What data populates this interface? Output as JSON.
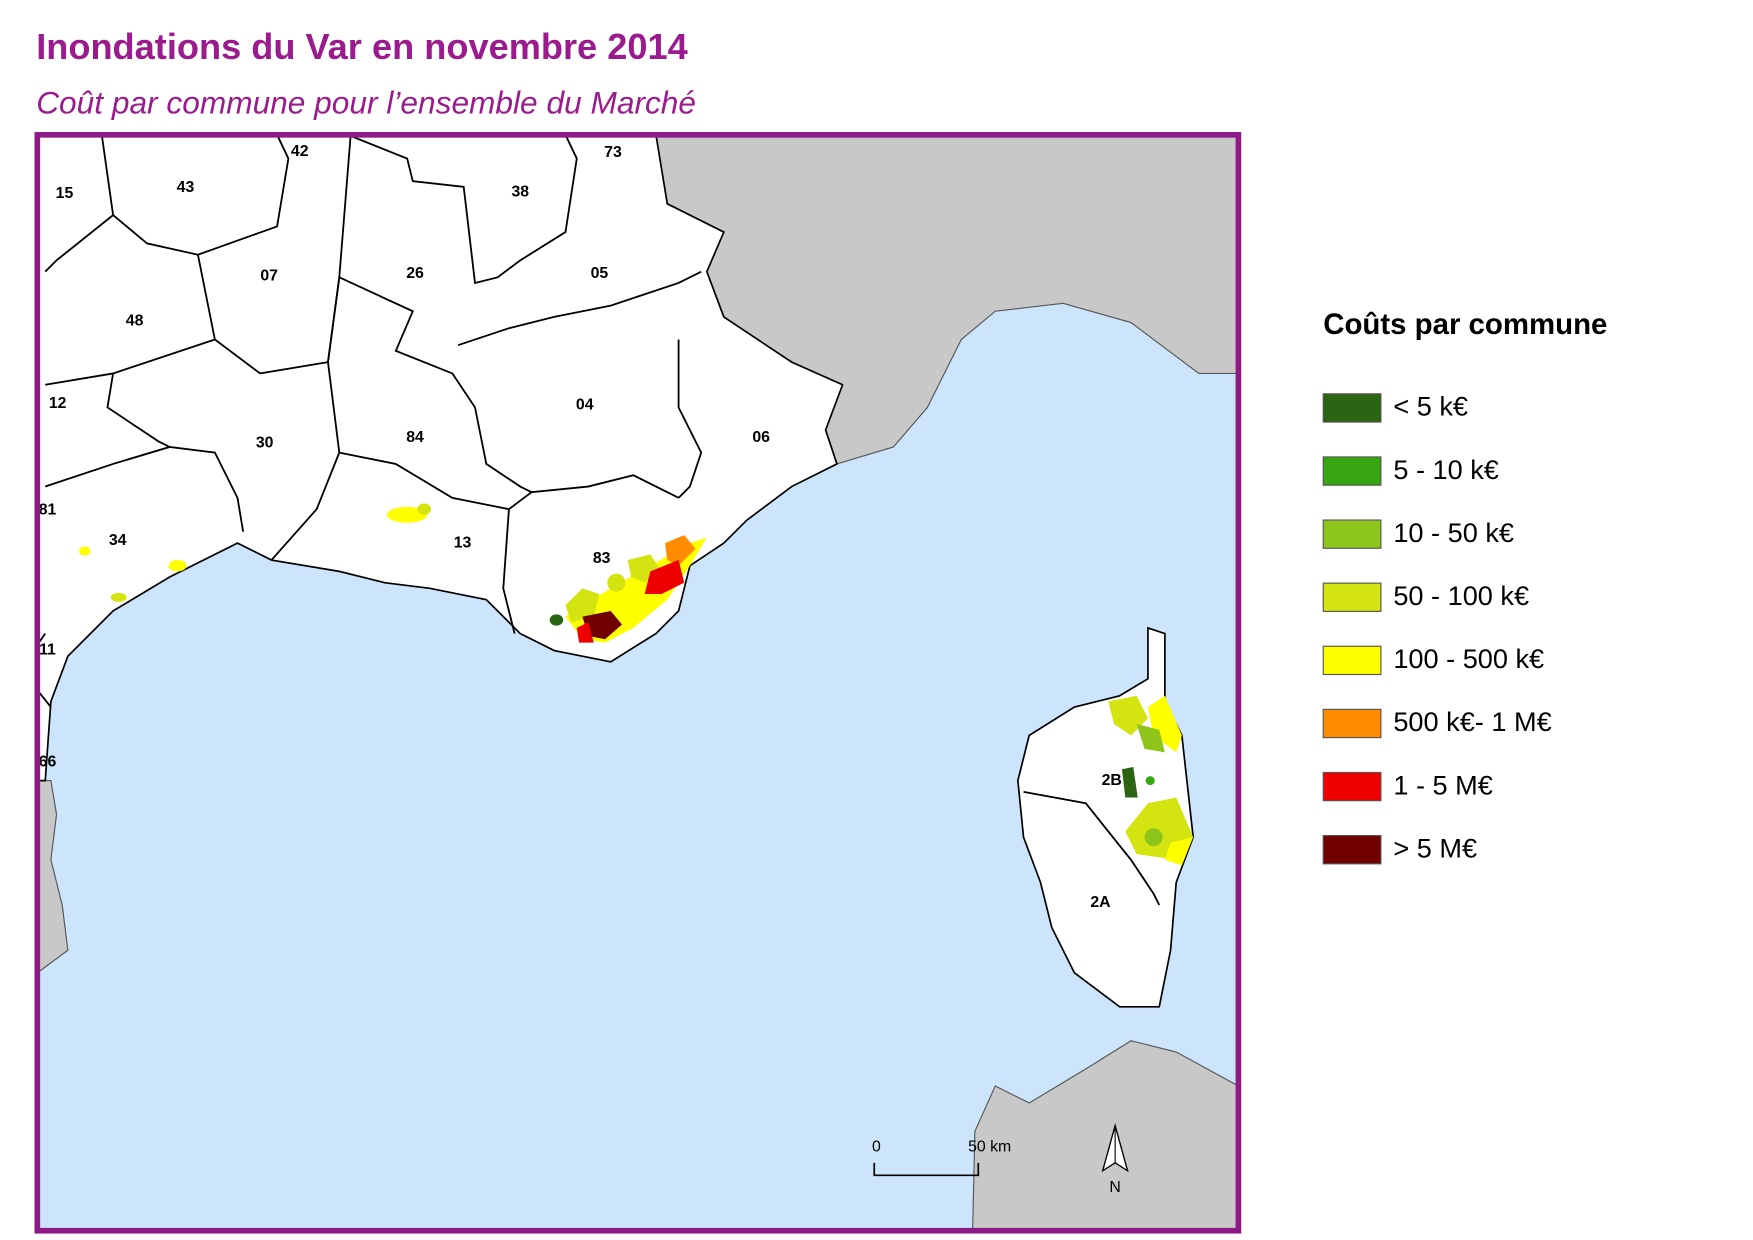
{
  "header": {
    "title": "Inondations du Var en novembre 2014",
    "subtitle": "Coût par commune pour l’ensemble du Marché"
  },
  "map": {
    "departments": [
      "15",
      "43",
      "42",
      "73",
      "38",
      "07",
      "26",
      "05",
      "48",
      "12",
      "30",
      "84",
      "04",
      "06",
      "81",
      "34",
      "13",
      "83",
      "11",
      "66",
      "2B",
      "2A"
    ],
    "scale_bar": {
      "start": "0",
      "end": "50 km"
    },
    "north": "N"
  },
  "legend": {
    "title": "Coûts par commune",
    "items": [
      {
        "label": "< 5 k€",
        "color": "#2b6413"
      },
      {
        "label": "5 - 10 k€",
        "color": "#38a512"
      },
      {
        "label": "10 - 50 k€",
        "color": "#8ec51a"
      },
      {
        "label": "50 - 100 k€",
        "color": "#d4e410"
      },
      {
        "label": "100 - 500 k€",
        "color": "#ffff00"
      },
      {
        "label": "500 k€- 1 M€",
        "color": "#ff8c00"
      },
      {
        "label": "1 - 5 M€",
        "color": "#ee0000"
      },
      {
        "label": "> 5 M€",
        "color": "#730000"
      }
    ]
  }
}
